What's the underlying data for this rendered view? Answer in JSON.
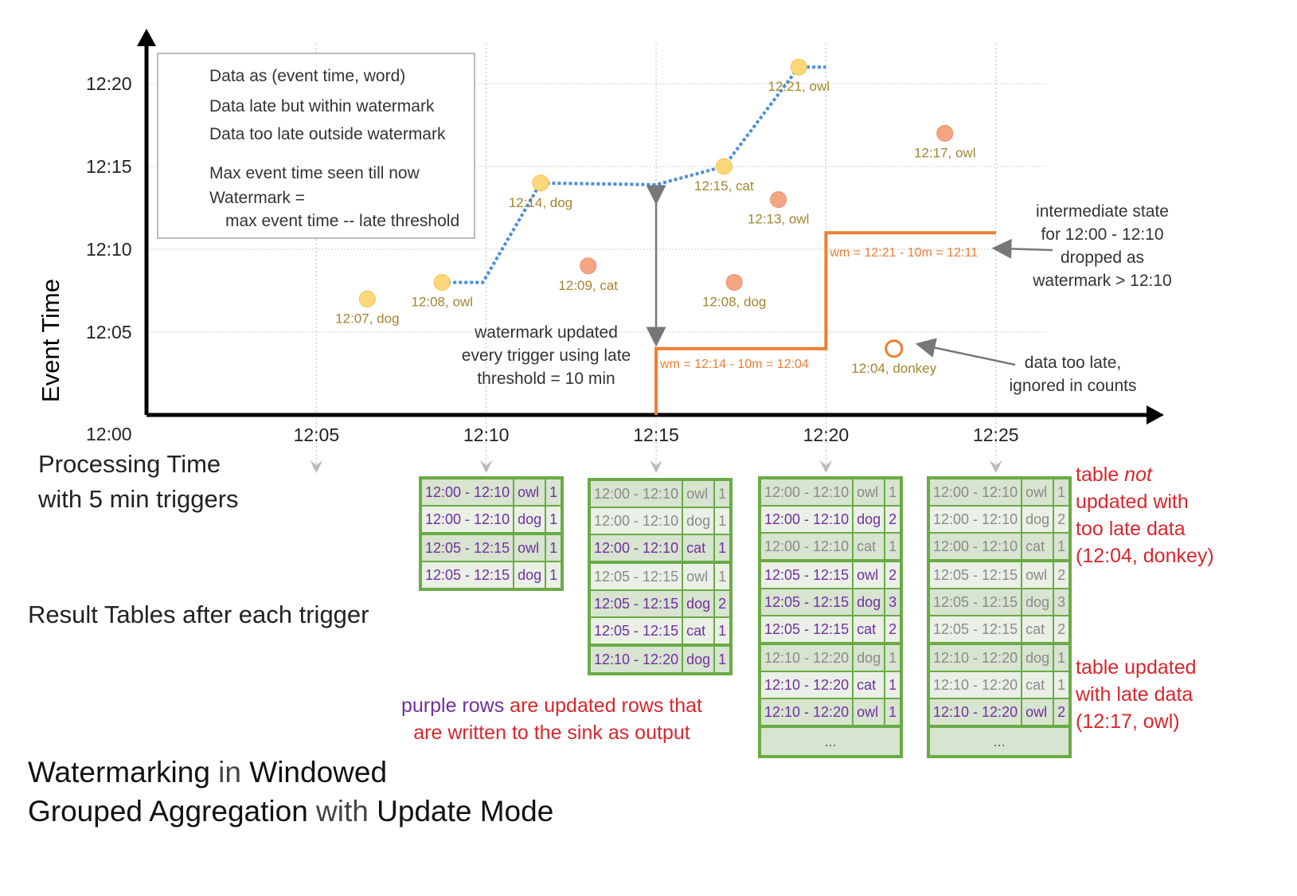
{
  "axes": {
    "y_label": "Event Time",
    "x_label_line1": "Processing Time",
    "x_label_line2": "with 5 min triggers",
    "y_ticks": [
      "12:00",
      "12:05",
      "12:10",
      "12:15",
      "12:20"
    ],
    "x_ticks": [
      "12:05",
      "12:10",
      "12:15",
      "12:20",
      "12:25"
    ]
  },
  "legend": {
    "on_time": "Data as (event time, word)",
    "late": "Data late but within watermark",
    "too_late": "Data too late outside watermark",
    "max_line": "Max event time seen till now",
    "wm_line1": "Watermark =",
    "wm_line2": "max event time -- late threshold"
  },
  "colors": {
    "on_time": "#fdd87a",
    "late": "#f4a584",
    "too_late": "#ee7d31",
    "max_line": "#4a90d9",
    "watermark": "#ee7d31",
    "updated": "#7030a0",
    "unchanged": "#8a8a8a",
    "table_border": "#6aab45",
    "annotation": "#d9262c"
  },
  "points": [
    {
      "label": "12:07, dog",
      "type": "on_time",
      "proc": 6.5,
      "event": 7
    },
    {
      "label": "12:08, owl",
      "type": "on_time",
      "proc": 8.7,
      "event": 8
    },
    {
      "label": "12:14, dog",
      "type": "on_time",
      "proc": 11.6,
      "event": 14
    },
    {
      "label": "12:09, cat",
      "type": "late",
      "proc": 13,
      "event": 9
    },
    {
      "label": "12:15, cat",
      "type": "on_time",
      "proc": 17,
      "event": 15
    },
    {
      "label": "12:08, dog",
      "type": "late",
      "proc": 17.3,
      "event": 8
    },
    {
      "label": "12:13, owl",
      "type": "late",
      "proc": 18.6,
      "event": 13
    },
    {
      "label": "12:21, owl",
      "type": "on_time",
      "proc": 19.2,
      "event": 21
    },
    {
      "label": "12:04, donkey",
      "type": "too_late",
      "proc": 22,
      "event": 4
    },
    {
      "label": "12:17, owl",
      "type": "late",
      "proc": 23.5,
      "event": 17
    }
  ],
  "watermarks": [
    {
      "label": "wm = 12:14 - 10m = 12:04",
      "from": 15,
      "to": 20,
      "value": 4
    },
    {
      "label": "wm = 12:21 - 10m = 12:11",
      "from": 20,
      "to": 25,
      "value": 11
    }
  ],
  "annotations": {
    "wm_updated": [
      "watermark updated",
      "every trigger using late",
      "threshold = 10 min"
    ],
    "intermediate": [
      "intermediate state",
      "for 12:00 - 12:10",
      "dropped as",
      "watermark > 12:10"
    ],
    "too_late": [
      "data too late,",
      "ignored in counts"
    ],
    "result_tables": "Result Tables after each trigger",
    "purple_1": "purple rows",
    "purple_2": " are updated rows that",
    "purple_3": "are written to the sink as output",
    "not_updated": [
      "table ",
      "not",
      "updated with",
      "too late data",
      "(12:04, donkey)"
    ],
    "updated_late": [
      "table updated",
      "with late data",
      "(12:17, owl)"
    ]
  },
  "title": {
    "w1": "Watermarking",
    "w2": " in ",
    "w3": "Windowed",
    "w4": "Grouped Aggregation",
    "w5": " with ",
    "w6": "Update Mode"
  },
  "tables": [
    [
      [
        "12:00 - 12:10",
        "owl",
        "1",
        true
      ],
      [
        "12:00 - 12:10",
        "dog",
        "1",
        true
      ],
      [
        "12:05 - 12:15",
        "owl",
        "1",
        true
      ],
      [
        "12:05 - 12:15",
        "dog",
        "1",
        true
      ]
    ],
    [
      [
        "12:00 - 12:10",
        "owl",
        "1",
        false
      ],
      [
        "12:00 - 12:10",
        "dog",
        "1",
        false
      ],
      [
        "12:00 - 12:10",
        "cat",
        "1",
        true
      ],
      [
        "12:05 - 12:15",
        "owl",
        "1",
        false
      ],
      [
        "12:05 - 12:15",
        "dog",
        "2",
        true
      ],
      [
        "12:05 - 12:15",
        "cat",
        "1",
        true
      ],
      [
        "12:10 - 12:20",
        "dog",
        "1",
        true
      ]
    ],
    [
      [
        "12:00 - 12:10",
        "owl",
        "1",
        false
      ],
      [
        "12:00 - 12:10",
        "dog",
        "2",
        true
      ],
      [
        "12:00 - 12:10",
        "cat",
        "1",
        false
      ],
      [
        "12:05 - 12:15",
        "owl",
        "2",
        true
      ],
      [
        "12:05 - 12:15",
        "dog",
        "3",
        true
      ],
      [
        "12:05 - 12:15",
        "cat",
        "2",
        true
      ],
      [
        "12:10 - 12:20",
        "dog",
        "1",
        false
      ],
      [
        "12:10 - 12:20",
        "cat",
        "1",
        true
      ],
      [
        "12:10 - 12:20",
        "owl",
        "1",
        true
      ],
      [
        "...",
        "",
        ""
      ]
    ],
    [
      [
        "12:00 - 12:10",
        "owl",
        "1",
        false
      ],
      [
        "12:00 - 12:10",
        "dog",
        "2",
        false
      ],
      [
        "12:00 - 12:10",
        "cat",
        "1",
        false
      ],
      [
        "12:05 - 12:15",
        "owl",
        "2",
        false
      ],
      [
        "12:05 - 12:15",
        "dog",
        "3",
        false
      ],
      [
        "12:05 - 12:15",
        "cat",
        "2",
        false
      ],
      [
        "12:10 - 12:20",
        "dog",
        "1",
        false
      ],
      [
        "12:10 - 12:20",
        "cat",
        "1",
        false
      ],
      [
        "12:10 - 12:20",
        "owl",
        "2",
        true
      ],
      [
        "...",
        "",
        ""
      ]
    ]
  ]
}
